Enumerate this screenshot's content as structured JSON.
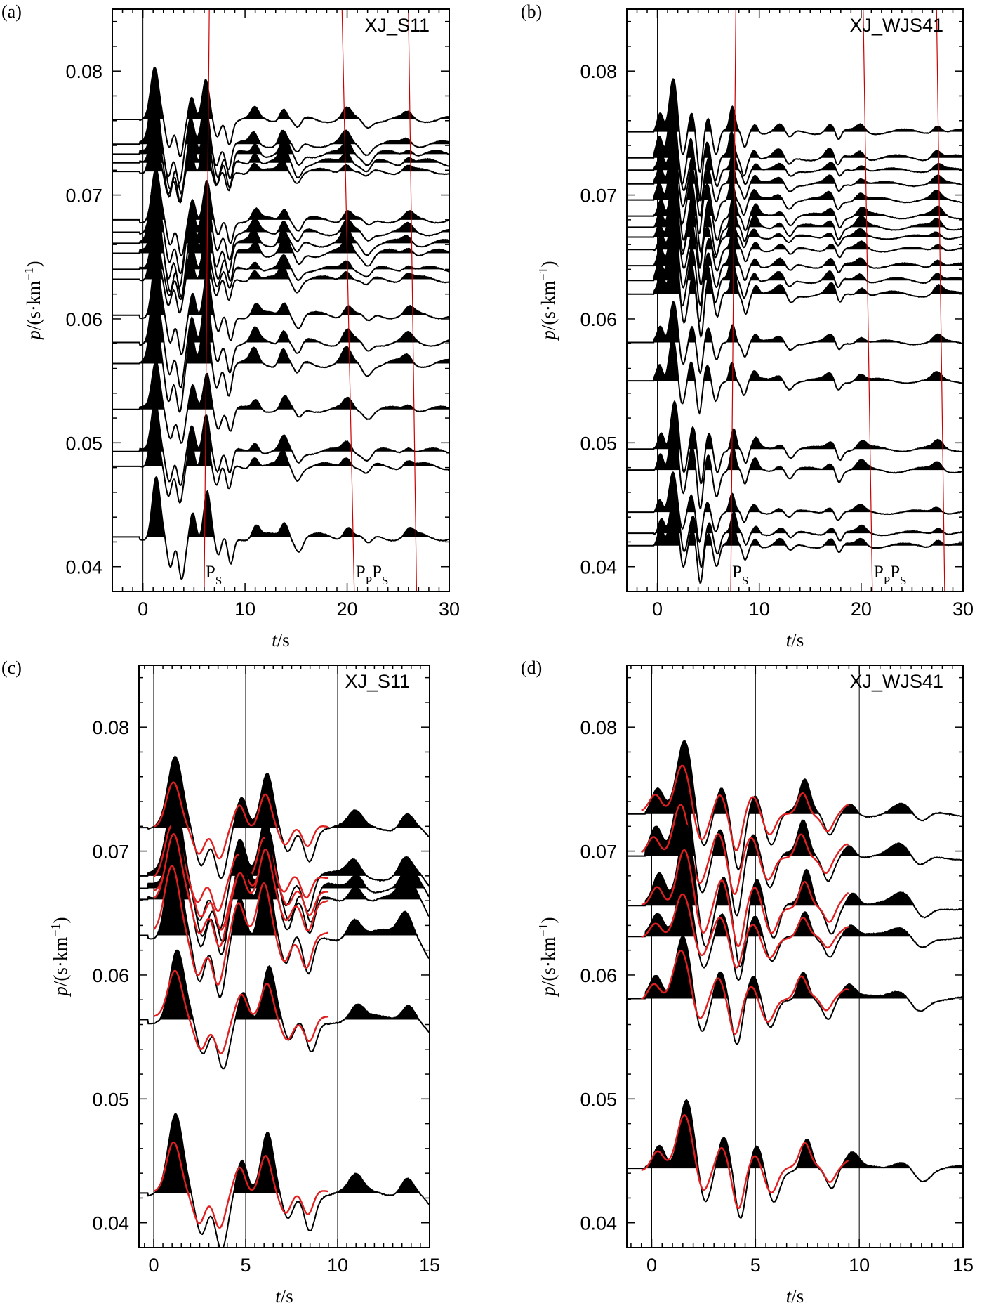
{
  "figure": {
    "panels": [
      {
        "label": "(a)",
        "station": "XJ_S11",
        "ylabel": "p/(s·km⁻¹)",
        "xlabel": "t/s",
        "phase_labels": [
          "PS",
          "PPPS"
        ]
      },
      {
        "label": "(b)",
        "station": "XJ_WJS41",
        "ylabel": "p/(s·km⁻¹)",
        "xlabel": "t/s",
        "phase_labels": [
          "PS",
          "PPPS"
        ]
      },
      {
        "label": "(c)",
        "station": "XJ_S11",
        "ylabel": "p/(s·km⁻¹)",
        "xlabel": "t/s"
      },
      {
        "label": "(d)",
        "station": "XJ_WJS41",
        "ylabel": "p/(s·km⁻¹)",
        "xlabel": "t/s"
      }
    ]
  },
  "chart_data": [
    {
      "type": "line",
      "panel": "(a)",
      "title": "XJ_S11",
      "xlabel": "t/s",
      "ylabel": "p/(s·km⁻¹)",
      "xlim": [
        -3,
        30
      ],
      "ylim": [
        0.038,
        0.085
      ],
      "x_ticks": [
        0,
        10,
        20,
        30
      ],
      "y_ticks": [
        0.04,
        0.05,
        0.06,
        0.07,
        0.08
      ],
      "trace_ray_parameters": [
        0.0761,
        0.0741,
        0.0733,
        0.0726,
        0.0719,
        0.068,
        0.067,
        0.0661,
        0.0653,
        0.064,
        0.0632,
        0.0603,
        0.0581,
        0.0564,
        0.0527,
        0.0493,
        0.0481,
        0.0424
      ],
      "trace_peaks_t": [
        1.2,
        6.2,
        11,
        13.8,
        20
      ],
      "phase_lines": [
        {
          "label": "PS",
          "t_at_p_0.085": 6.5,
          "t_at_p_0.038": 6.0
        },
        {
          "label": "PPPS",
          "t_at_p_0.085": 19.5,
          "t_at_p_0.038": 20.7
        },
        {
          "label": "",
          "t_at_p_0.085": 26.0,
          "t_at_p_0.038": 26.8
        }
      ]
    },
    {
      "type": "line",
      "panel": "(b)",
      "title": "XJ_WJS41",
      "xlabel": "t/s",
      "ylabel": "p/(s·km⁻¹)",
      "xlim": [
        -3,
        30
      ],
      "ylim": [
        0.038,
        0.085
      ],
      "x_ticks": [
        0,
        10,
        20,
        30
      ],
      "y_ticks": [
        0.04,
        0.05,
        0.06,
        0.07,
        0.08
      ],
      "trace_ray_parameters": [
        0.0751,
        0.073,
        0.072,
        0.0709,
        0.0696,
        0.0683,
        0.0674,
        0.0666,
        0.0656,
        0.0643,
        0.0631,
        0.062,
        0.0581,
        0.055,
        0.0495,
        0.0478,
        0.0444,
        0.0427,
        0.0417
      ],
      "trace_peaks_t": [
        1.6,
        3.3,
        7.4,
        17,
        27.5
      ],
      "phase_lines": [
        {
          "label": "PS",
          "t_at_p_0.085": 7.7,
          "t_at_p_0.038": 7.2
        },
        {
          "label": "PPPS",
          "t_at_p_0.085": 20.2,
          "t_at_p_0.038": 21.1
        },
        {
          "label": "",
          "t_at_p_0.085": 27.4,
          "t_at_p_0.038": 28.2
        }
      ]
    },
    {
      "type": "line",
      "panel": "(c)",
      "title": "XJ_S11",
      "xlabel": "t/s",
      "ylabel": "p/(s·km⁻¹)",
      "xlim": [
        -0.8,
        15
      ],
      "ylim": [
        0.038,
        0.085
      ],
      "x_ticks": [
        0,
        5,
        10,
        15
      ],
      "y_ticks": [
        0.04,
        0.05,
        0.06,
        0.07,
        0.08
      ],
      "vertical_lines_t": [
        0,
        5,
        10
      ],
      "trace_ray_parameters": [
        0.0719,
        0.068,
        0.067,
        0.0661,
        0.0632,
        0.0564,
        0.0424
      ],
      "trace_peaks_t": [
        1.1,
        6.2,
        11.0,
        13.8
      ],
      "synthetic_traces": "red",
      "synthetic_t_range": [
        0,
        9.5
      ]
    },
    {
      "type": "line",
      "panel": "(d)",
      "title": "XJ_WJS41",
      "xlabel": "t/s",
      "ylabel": "p/(s·km⁻¹)",
      "xlim": [
        -1.2,
        15
      ],
      "ylim": [
        0.038,
        0.085
      ],
      "x_ticks": [
        0,
        5,
        10,
        15
      ],
      "y_ticks": [
        0.04,
        0.05,
        0.06,
        0.07,
        0.08
      ],
      "vertical_lines_t": [
        0,
        5,
        10
      ],
      "trace_ray_parameters": [
        0.073,
        0.0696,
        0.0656,
        0.0631,
        0.0581,
        0.0444
      ],
      "trace_peaks_t": [
        0.3,
        1.6,
        3.4,
        7.4,
        9.6
      ],
      "synthetic_traces": "red",
      "synthetic_t_range": [
        -0.5,
        9.5
      ]
    }
  ],
  "colors": {
    "trace": "#000000",
    "phase_line": "#cc0000",
    "synthetic": "#e02020"
  }
}
